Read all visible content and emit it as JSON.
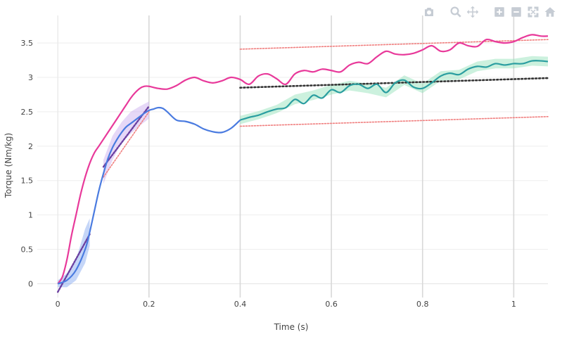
{
  "modebar": [
    {
      "name": "camera-icon",
      "title": "Download plot as a png"
    },
    {
      "name": "zoom-icon",
      "title": "Zoom"
    },
    {
      "name": "pan-icon",
      "title": "Pan"
    },
    {
      "name": "zoom-in-icon",
      "title": "Zoom in"
    },
    {
      "name": "zoom-out-icon",
      "title": "Zoom out"
    },
    {
      "name": "autoscale-icon",
      "title": "Autoscale"
    },
    {
      "name": "reset-axes-icon",
      "title": "Reset axes"
    }
  ],
  "chart_data": {
    "type": "line",
    "xlabel": "Time (s)",
    "ylabel": "Torque (Nm/kg)",
    "xlim": [
      -0.045,
      1.075
    ],
    "ylim": [
      -0.2,
      3.9
    ],
    "xticks": [
      0,
      0.2,
      0.4,
      0.6,
      0.8,
      1
    ],
    "xtick_labels": [
      "0",
      "0.2",
      "0.4",
      "0.6",
      "0.8",
      "1"
    ],
    "yticks": [
      0,
      0.5,
      1,
      1.5,
      2,
      2.5,
      3,
      3.5
    ],
    "ytick_labels": [
      "0",
      "0.5",
      "1",
      "1.5",
      "2",
      "2.5",
      "3",
      "3.5"
    ],
    "vlines": [
      0.2,
      0.4,
      0.6,
      0.8,
      1.0
    ],
    "grid": true,
    "colors": {
      "pink": "#e8399a",
      "blue": "#4a7be0",
      "teal": "#2a9ea0",
      "green_band": "#8ee0b5",
      "blue_band": "#7fa5f0",
      "purple_band": "#c8a8ee",
      "dotted_dark": "#333333",
      "dotted_purple": "#6b3fa0",
      "dotted_red": "#f08080"
    },
    "series": [
      {
        "role": "pink-line",
        "color": "#e8399a",
        "x": [
          0,
          0.01,
          0.02,
          0.03,
          0.04,
          0.05,
          0.06,
          0.07,
          0.08,
          0.09,
          0.1,
          0.11,
          0.12,
          0.13,
          0.14,
          0.15,
          0.16,
          0.17,
          0.18,
          0.19,
          0.2,
          0.22,
          0.24,
          0.26,
          0.28,
          0.3,
          0.32,
          0.34,
          0.36,
          0.38,
          0.4,
          0.42,
          0.44,
          0.46,
          0.48,
          0.5,
          0.52,
          0.54,
          0.56,
          0.58,
          0.6,
          0.62,
          0.64,
          0.66,
          0.68,
          0.7,
          0.72,
          0.74,
          0.76,
          0.78,
          0.8,
          0.82,
          0.84,
          0.86,
          0.88,
          0.9,
          0.92,
          0.94,
          0.96,
          0.98,
          1.0,
          1.02,
          1.04,
          1.06,
          1.075
        ],
        "y": [
          0,
          0.1,
          0.35,
          0.7,
          1.0,
          1.3,
          1.55,
          1.75,
          1.9,
          2.0,
          2.1,
          2.2,
          2.3,
          2.4,
          2.5,
          2.6,
          2.7,
          2.78,
          2.84,
          2.87,
          2.87,
          2.84,
          2.83,
          2.88,
          2.96,
          3.0,
          2.95,
          2.92,
          2.95,
          3.0,
          2.97,
          2.9,
          3.02,
          3.05,
          2.98,
          2.9,
          3.05,
          3.1,
          3.08,
          3.12,
          3.1,
          3.08,
          3.18,
          3.22,
          3.2,
          3.3,
          3.38,
          3.34,
          3.33,
          3.35,
          3.4,
          3.46,
          3.38,
          3.4,
          3.5,
          3.46,
          3.45,
          3.55,
          3.52,
          3.5,
          3.52,
          3.58,
          3.62,
          3.6,
          3.6
        ]
      },
      {
        "role": "blue-line",
        "color": "#4a7be0",
        "x": [
          0,
          0.02,
          0.04,
          0.06,
          0.07,
          0.08,
          0.09,
          0.1,
          0.11,
          0.12,
          0.13,
          0.14,
          0.15,
          0.16,
          0.17,
          0.18,
          0.19,
          0.2,
          0.21,
          0.22,
          0.23,
          0.24,
          0.26,
          0.28,
          0.3,
          0.32,
          0.34,
          0.36,
          0.38,
          0.4
        ],
        "y": [
          0,
          0.05,
          0.2,
          0.5,
          0.75,
          1.05,
          1.35,
          1.6,
          1.82,
          1.98,
          2.1,
          2.2,
          2.28,
          2.33,
          2.38,
          2.43,
          2.48,
          2.52,
          2.54,
          2.56,
          2.55,
          2.5,
          2.38,
          2.36,
          2.32,
          2.25,
          2.21,
          2.2,
          2.26,
          2.38
        ]
      },
      {
        "role": "teal-line",
        "color": "#2a9ea0",
        "x": [
          0.4,
          0.42,
          0.44,
          0.46,
          0.48,
          0.5,
          0.52,
          0.54,
          0.56,
          0.58,
          0.6,
          0.62,
          0.64,
          0.66,
          0.68,
          0.7,
          0.72,
          0.74,
          0.76,
          0.78,
          0.8,
          0.82,
          0.84,
          0.86,
          0.88,
          0.9,
          0.92,
          0.94,
          0.96,
          0.98,
          1.0,
          1.02,
          1.04,
          1.06,
          1.075
        ],
        "y": [
          2.38,
          2.42,
          2.45,
          2.5,
          2.54,
          2.56,
          2.68,
          2.62,
          2.74,
          2.7,
          2.82,
          2.78,
          2.88,
          2.9,
          2.84,
          2.9,
          2.78,
          2.92,
          2.96,
          2.86,
          2.84,
          2.92,
          3.02,
          3.06,
          3.04,
          3.12,
          3.16,
          3.15,
          3.2,
          3.18,
          3.2,
          3.2,
          3.24,
          3.24,
          3.23
        ]
      }
    ],
    "bands": [
      {
        "role": "blue-band",
        "color": "#7fa5f0",
        "x": [
          0,
          0.02,
          0.04,
          0.06,
          0.07
        ],
        "y_low": [
          -0.05,
          -0.05,
          0.05,
          0.3,
          0.55
        ],
        "y_high": [
          0.05,
          0.15,
          0.35,
          0.8,
          0.95
        ]
      },
      {
        "role": "purple-band",
        "color": "#c8a8ee",
        "x": [
          0.1,
          0.12,
          0.14,
          0.16,
          0.18,
          0.2
        ],
        "y_low": [
          1.45,
          1.8,
          2.05,
          2.18,
          2.3,
          2.4
        ],
        "y_high": [
          1.8,
          2.15,
          2.35,
          2.5,
          2.58,
          2.65
        ]
      },
      {
        "role": "green-band",
        "color": "#8ee0b5",
        "x": [
          0.4,
          0.44,
          0.48,
          0.52,
          0.56,
          0.6,
          0.64,
          0.68,
          0.72,
          0.76,
          0.8,
          0.84,
          0.88,
          0.92,
          0.96,
          1.0,
          1.04,
          1.075
        ],
        "y_low": [
          2.32,
          2.39,
          2.48,
          2.61,
          2.67,
          2.75,
          2.81,
          2.77,
          2.71,
          2.89,
          2.77,
          2.95,
          2.97,
          3.09,
          3.13,
          3.13,
          3.17,
          3.16
        ],
        "y_high": [
          2.44,
          2.51,
          2.6,
          2.75,
          2.81,
          2.89,
          2.95,
          2.91,
          2.85,
          3.03,
          2.91,
          3.09,
          3.11,
          3.23,
          3.27,
          3.27,
          3.31,
          3.3
        ]
      }
    ],
    "trendlines": [
      {
        "role": "dark-dotted-trend",
        "color": "#333333",
        "x": [
          0.4,
          1.075
        ],
        "y": [
          2.85,
          2.99
        ]
      },
      {
        "role": "red-dotted-upper",
        "color": "#f08080",
        "x": [
          0.4,
          1.075
        ],
        "y": [
          3.41,
          3.55
        ]
      },
      {
        "role": "red-dotted-lower",
        "color": "#f08080",
        "x": [
          0.4,
          1.075
        ],
        "y": [
          2.29,
          2.43
        ]
      },
      {
        "role": "purple-dotted-early",
        "color": "#6b3fa0",
        "x": [
          0.0,
          0.07
        ],
        "y": [
          -0.12,
          0.72
        ]
      },
      {
        "role": "purple-dotted-mid",
        "color": "#6b3fa0",
        "x": [
          0.1,
          0.2
        ],
        "y": [
          1.7,
          2.58
        ]
      },
      {
        "role": "red-dotted-mid",
        "color": "#f08080",
        "x": [
          0.1,
          0.2
        ],
        "y": [
          1.55,
          2.5
        ]
      }
    ]
  }
}
